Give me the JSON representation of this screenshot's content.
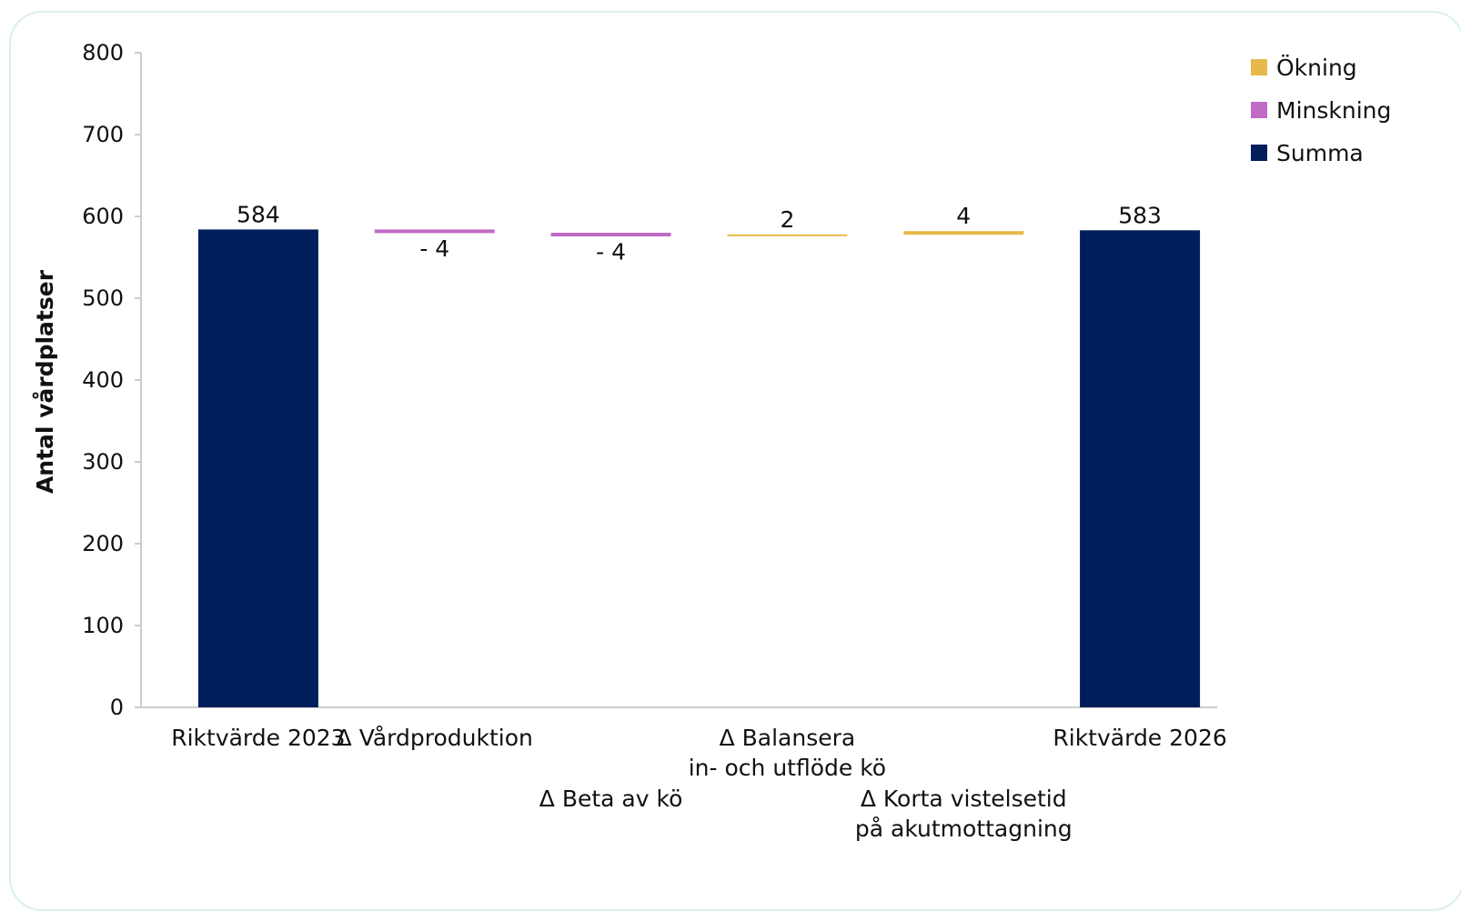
{
  "chart_data": {
    "type": "bar",
    "subtype": "waterfall",
    "ylabel": "Antal vårdplatser",
    "ylim": [
      0,
      800
    ],
    "yticks": [
      0,
      100,
      200,
      300,
      400,
      500,
      600,
      700,
      800
    ],
    "ytick_labels": [
      "0",
      "100",
      "200",
      "300",
      "400",
      "500",
      "600",
      "700",
      "800"
    ],
    "grid": false,
    "legend_position": "top-right",
    "legend": [
      {
        "key": "okning",
        "label": "Ökning",
        "color": "#E8B84A"
      },
      {
        "key": "minskning",
        "label": "Minskning",
        "color": "#C06CC6"
      },
      {
        "key": "summa",
        "label": "Summa",
        "color": "#001E5A"
      }
    ],
    "steps": [
      {
        "category": [
          "Riktvärde 2023"
        ],
        "kind": "summa",
        "value": 584,
        "label": "584"
      },
      {
        "category": [
          "Δ Vårdproduktion"
        ],
        "kind": "minskning",
        "value": -4,
        "label": "- 4"
      },
      {
        "category": [
          "Δ Beta av kö"
        ],
        "kind": "minskning",
        "value": -4,
        "label": "- 4"
      },
      {
        "category": [
          "Δ Balansera",
          "in- och utflöde kö"
        ],
        "kind": "okning",
        "value": 2,
        "label": "2"
      },
      {
        "category": [
          "Δ Korta vistelsetid",
          "på akutmottagning"
        ],
        "kind": "okning",
        "value": 4,
        "label": "4"
      },
      {
        "category": [
          "Riktvärde 2026"
        ],
        "kind": "summa",
        "value": 583,
        "label": "583"
      }
    ]
  }
}
